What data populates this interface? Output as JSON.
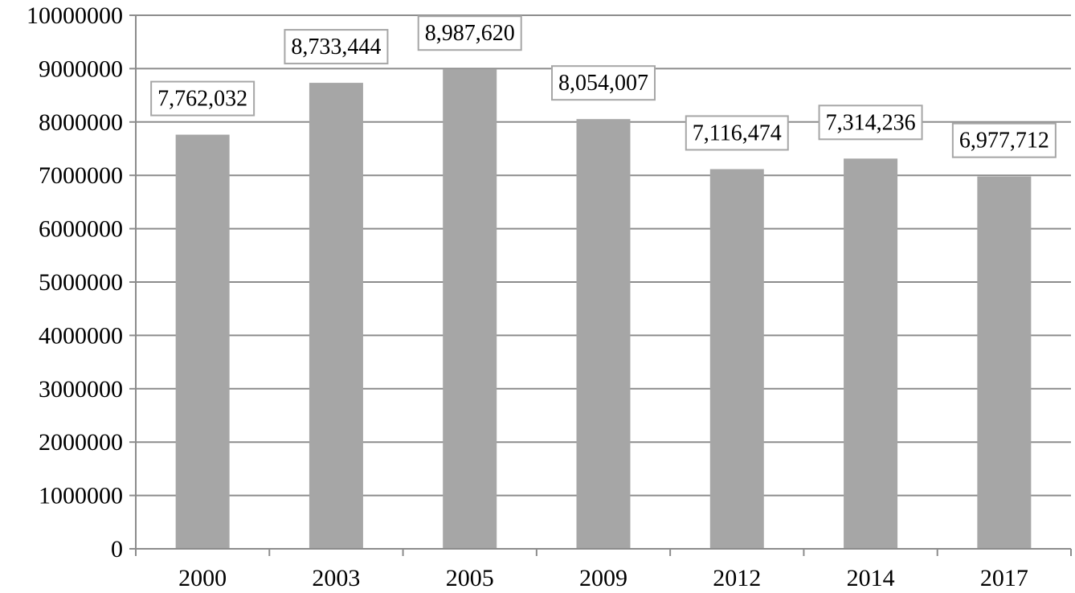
{
  "chart_data": {
    "type": "bar",
    "categories": [
      "2000",
      "2003",
      "2005",
      "2009",
      "2012",
      "2014",
      "2017"
    ],
    "values": [
      7762032,
      8733444,
      8987620,
      8054007,
      7116474,
      7314236,
      6977712
    ],
    "data_labels": [
      "7,762,032",
      "8,733,444",
      "8,987,620",
      "8,054,007",
      "7,116,474",
      "7,314,236",
      "6,977,712"
    ],
    "y_tick_labels": [
      "0",
      "1000000",
      "2000000",
      "3000000",
      "4000000",
      "5000000",
      "6000000",
      "7000000",
      "8000000",
      "9000000",
      "10000000"
    ],
    "ylim": [
      0,
      10000000
    ],
    "title": "",
    "xlabel": "",
    "ylabel": "",
    "grid": true,
    "legend": "none",
    "colors": {
      "bar": "#a6a6a6",
      "grid": "#8c8c8c",
      "label_border": "#a6a6a6"
    }
  }
}
